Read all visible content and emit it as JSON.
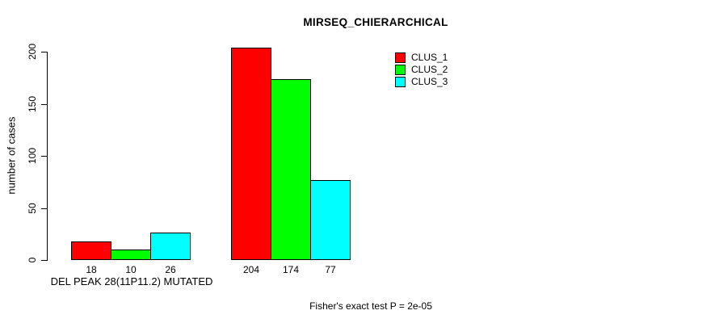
{
  "page": {
    "background": "#ffffff",
    "text_color": "#000000"
  },
  "chart_data": {
    "type": "bar",
    "title": "MIRSEQ_CHIERARCHICAL",
    "ylabel": "number of cases",
    "xlabel": "DEL PEAK 28(11P11.2) MUTATED",
    "footnote": "Fisher's exact test P = 2e-05",
    "ylim": [
      0,
      200
    ],
    "yticks": [
      0,
      50,
      100,
      150,
      200
    ],
    "grid": false,
    "bar_value_labels_shown": true,
    "legend_position": "top-right",
    "legend_entries": [
      "CLUS_1",
      "CLUS_2",
      "CLUS_3"
    ],
    "group_count": 2,
    "series": [
      {
        "name": "CLUS_1",
        "color": "#FF0000",
        "values": [
          18,
          204
        ]
      },
      {
        "name": "CLUS_2",
        "color": "#00FF00",
        "values": [
          10,
          174
        ]
      },
      {
        "name": "CLUS_3",
        "color": "#00FFFF",
        "values": [
          26,
          77
        ]
      }
    ]
  }
}
